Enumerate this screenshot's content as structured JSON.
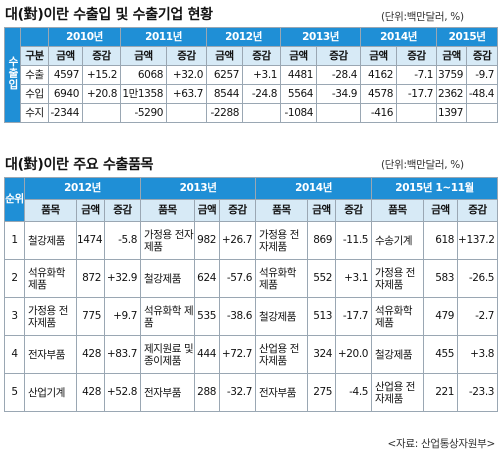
{
  "trade": {
    "title": "대(對)이란 수출입 및 수출기업 현황",
    "unit": "(단위:백만달러, %)",
    "years": [
      "2010년",
      "2011년",
      "2012년",
      "2013년",
      "2014년",
      "2015년"
    ],
    "side_label": "수출입",
    "sub_headers": [
      "구분",
      "금액",
      "증감",
      "금액",
      "증감",
      "금액",
      "증감",
      "금액",
      "증감",
      "금액",
      "증감",
      "금액",
      "증감"
    ],
    "rows": [
      [
        "수출",
        "4597",
        "+15.2",
        "6068",
        "+32.0",
        "6257",
        "+3.1",
        "4481",
        "-28.4",
        "4162",
        "-7.1",
        "3759",
        "-9.7"
      ],
      [
        "수입",
        "6940",
        "+20.8",
        "1만1358",
        "+63.7",
        "8544",
        "-24.8",
        "5564",
        "-34.9",
        "4578",
        "-17.7",
        "2362",
        "-48.4"
      ],
      [
        "수지",
        "-2344",
        "-5290",
        "-2288",
        "-1084",
        "-416",
        "1397"
      ]
    ]
  },
  "items": {
    "title": "대(對)이란 주요 수출품목",
    "unit": "(단위:백만달러, %)",
    "rank_label": "순위",
    "periods": [
      "2012년",
      "2013년",
      "2014년",
      "2015년 1~11월"
    ],
    "sub_headers": [
      "품목",
      "금액",
      "증감",
      "품목",
      "금액",
      "증감",
      "품목",
      "금액",
      "증감",
      "품목",
      "금액",
      "증감"
    ],
    "rows": [
      [
        "1",
        "철강제품",
        "1474",
        "-5.8",
        "가정용 전자제품",
        "982",
        "+26.7",
        "가정용 전자제품",
        "869",
        "-11.5",
        "수송기계",
        "618",
        "+137.2"
      ],
      [
        "2",
        "석유화학 제품",
        "872",
        "+32.9",
        "철강제품",
        "624",
        "-57.6",
        "석유화학 제품",
        "552",
        "+3.1",
        "가정용 전자제품",
        "583",
        "-26.5"
      ],
      [
        "3",
        "가정용 전자제품",
        "775",
        "+9.7",
        "석유화학 제품",
        "535",
        "-38.6",
        "철강제품",
        "513",
        "-17.7",
        "석유화학 제품",
        "479",
        "-2.7"
      ],
      [
        "4",
        "전자부품",
        "428",
        "+83.7",
        "제지원료 및종이제품",
        "444",
        "+72.7",
        "산업용 전자제품",
        "324",
        "+20.0",
        "철강제품",
        "455",
        "+3.8"
      ],
      [
        "5",
        "산업기계",
        "428",
        "+52.8",
        "전자부품",
        "288",
        "-32.7",
        "전자부품",
        "275",
        "-4.5",
        "산업용 전자제품",
        "221",
        "-23.3"
      ]
    ]
  },
  "source": "<자료: 산업통상자원부>",
  "colors": {
    "header_blue": "#1f8fd6",
    "sub_header": "#d7eaf6",
    "border": "#9aa7b3"
  }
}
